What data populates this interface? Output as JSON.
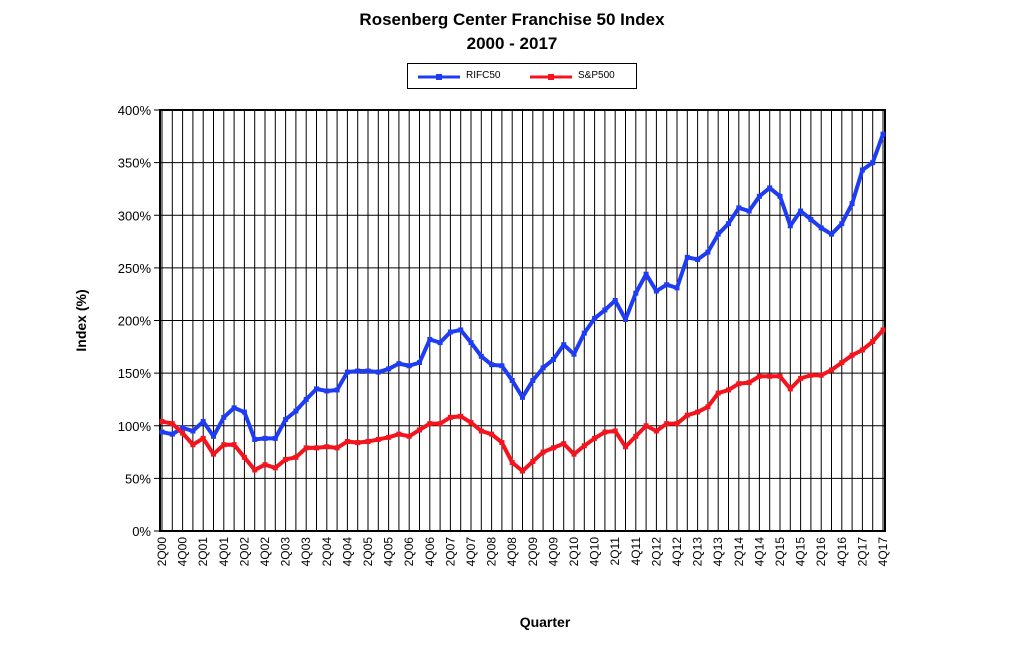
{
  "chart_data": {
    "type": "line",
    "title": "Rosenberg Center Franchise 50 Index",
    "subtitle": "2000 - 2017",
    "xlabel": "Quarter",
    "ylabel": "Index (%)",
    "ylim": [
      0,
      400
    ],
    "yticks": [
      "0%",
      "50%",
      "100%",
      "150%",
      "200%",
      "250%",
      "300%",
      "350%",
      "400%"
    ],
    "grid": true,
    "legend_position": "top-center",
    "x": [
      "2Q00",
      "3Q00",
      "4Q00",
      "1Q01",
      "2Q01",
      "3Q01",
      "4Q01",
      "1Q02",
      "2Q02",
      "3Q02",
      "4Q02",
      "1Q03",
      "2Q03",
      "3Q03",
      "4Q03",
      "1Q04",
      "2Q04",
      "3Q04",
      "4Q04",
      "1Q05",
      "2Q05",
      "3Q05",
      "4Q05",
      "1Q06",
      "2Q06",
      "3Q06",
      "4Q06",
      "1Q07",
      "2Q07",
      "3Q07",
      "4Q07",
      "1Q08",
      "2Q08",
      "3Q08",
      "4Q08",
      "1Q09",
      "2Q09",
      "3Q09",
      "4Q09",
      "1Q10",
      "2Q10",
      "3Q10",
      "4Q10",
      "1Q11",
      "2Q11",
      "3Q11",
      "4Q11",
      "1Q12",
      "2Q12",
      "3Q12",
      "4Q12",
      "1Q13",
      "2Q13",
      "3Q13",
      "4Q13",
      "1Q14",
      "2Q14",
      "3Q14",
      "4Q14",
      "1Q15",
      "2Q15",
      "3Q15",
      "4Q15",
      "1Q16",
      "2Q16",
      "3Q16",
      "4Q16",
      "1Q17",
      "2Q17",
      "3Q17",
      "4Q17"
    ],
    "xtick_labels": [
      "2Q00",
      "4Q00",
      "2Q01",
      "4Q01",
      "2Q02",
      "4Q02",
      "2Q03",
      "4Q03",
      "2Q04",
      "4Q04",
      "2Q05",
      "4Q05",
      "2Q06",
      "4Q06",
      "2Q07",
      "4Q07",
      "2Q08",
      "4Q08",
      "2Q09",
      "4Q09",
      "2Q10",
      "4Q10",
      "2Q11",
      "4Q11",
      "2Q12",
      "4Q12",
      "2Q13",
      "4Q13",
      "2Q14",
      "4Q14",
      "2Q15",
      "4Q15",
      "2Q16",
      "4Q16",
      "2Q17",
      "4Q17"
    ],
    "series": [
      {
        "name": "RIFC50",
        "color": "#1f3cf5",
        "values": [
          94,
          92,
          98,
          95,
          104,
          90,
          108,
          117,
          113,
          87,
          88,
          88,
          106,
          114,
          125,
          135,
          133,
          134,
          151,
          152,
          152,
          151,
          154,
          159,
          157,
          160,
          182,
          179,
          189,
          191,
          179,
          166,
          158,
          157,
          143,
          127,
          143,
          155,
          163,
          177,
          168,
          188,
          202,
          210,
          219,
          201,
          226,
          244,
          228,
          234,
          231,
          260,
          258,
          265,
          282,
          292,
          307,
          304,
          318,
          326,
          318,
          290,
          304,
          296,
          288,
          282,
          292,
          311,
          343,
          350,
          377
        ]
      },
      {
        "name": "S&P500",
        "color": "#f5141e",
        "values": [
          104,
          102,
          93,
          82,
          88,
          73,
          82,
          82,
          70,
          58,
          63,
          60,
          68,
          70,
          79,
          79,
          80,
          79,
          85,
          84,
          85,
          87,
          89,
          92,
          90,
          96,
          102,
          102,
          108,
          109,
          103,
          95,
          92,
          84,
          65,
          57,
          66,
          75,
          79,
          83,
          73,
          81,
          88,
          94,
          95,
          80,
          90,
          100,
          95,
          102,
          102,
          110,
          113,
          118,
          131,
          134,
          140,
          141,
          147,
          147,
          147,
          135,
          145,
          148,
          148,
          153,
          160,
          167,
          172,
          180,
          191
        ]
      }
    ]
  }
}
